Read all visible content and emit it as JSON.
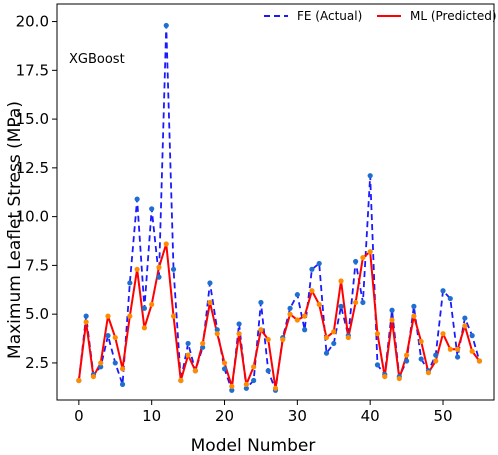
{
  "chart_data": {
    "type": "line",
    "annotation": "XGBoost",
    "xlabel": "Model Number",
    "ylabel": "Maximum Leaflet Stress (MPa)",
    "xlim": [
      -3,
      57
    ],
    "ylim": [
      0.6,
      20.9
    ],
    "x_ticks": [
      0,
      10,
      20,
      30,
      40,
      50
    ],
    "y_ticks": [
      2.5,
      5.0,
      7.5,
      10.0,
      12.5,
      15.0,
      17.5,
      20.0
    ],
    "y_tick_labels": [
      "2.5",
      "5.0",
      "7.5",
      "10.0",
      "12.5",
      "15.0",
      "17.5",
      "20.0"
    ],
    "legend_position": "top-right",
    "x": [
      0,
      1,
      2,
      3,
      4,
      5,
      6,
      7,
      8,
      9,
      10,
      11,
      12,
      13,
      14,
      15,
      16,
      17,
      18,
      19,
      20,
      21,
      22,
      23,
      24,
      25,
      26,
      27,
      28,
      29,
      30,
      31,
      32,
      33,
      34,
      35,
      36,
      37,
      38,
      39,
      40,
      41,
      42,
      43,
      44,
      45,
      46,
      47,
      48,
      49,
      50,
      51,
      52,
      53,
      54,
      55
    ],
    "series": [
      {
        "name": "FE (Actual)",
        "color": "#1a1aff",
        "dash": true,
        "marker_color": "#1f6fd1",
        "values": [
          1.6,
          4.9,
          1.9,
          2.3,
          3.9,
          2.5,
          1.4,
          6.6,
          10.9,
          5.3,
          10.4,
          6.9,
          19.8,
          7.3,
          1.6,
          3.5,
          2.1,
          3.3,
          6.6,
          4.2,
          2.2,
          1.1,
          4.5,
          1.2,
          1.6,
          5.6,
          2.1,
          1.1,
          3.8,
          5.3,
          6.0,
          4.2,
          7.3,
          7.6,
          3.0,
          3.5,
          5.4,
          3.9,
          7.7,
          5.6,
          12.1,
          2.4,
          1.9,
          5.2,
          1.8,
          2.6,
          5.4,
          2.7,
          2.1,
          2.9,
          6.2,
          5.8,
          2.8,
          4.8,
          3.9,
          2.6
        ]
      },
      {
        "name": "ML (Predicted)",
        "color": "#ff0000",
        "dash": false,
        "marker_color": "#ff8c00",
        "values": [
          1.6,
          4.6,
          1.8,
          2.5,
          4.9,
          3.8,
          2.2,
          4.9,
          7.3,
          4.3,
          5.5,
          7.4,
          8.6,
          4.9,
          1.6,
          2.9,
          2.1,
          3.5,
          5.6,
          4.0,
          2.5,
          1.3,
          4.0,
          1.4,
          2.3,
          4.2,
          3.7,
          1.2,
          3.7,
          5.0,
          4.7,
          4.9,
          6.2,
          5.5,
          3.8,
          4.1,
          6.7,
          3.8,
          5.6,
          7.9,
          8.2,
          4.0,
          1.8,
          4.7,
          1.7,
          2.9,
          4.9,
          3.6,
          2.0,
          2.6,
          4.0,
          3.2,
          3.2,
          4.4,
          3.1,
          2.6
        ]
      }
    ]
  }
}
